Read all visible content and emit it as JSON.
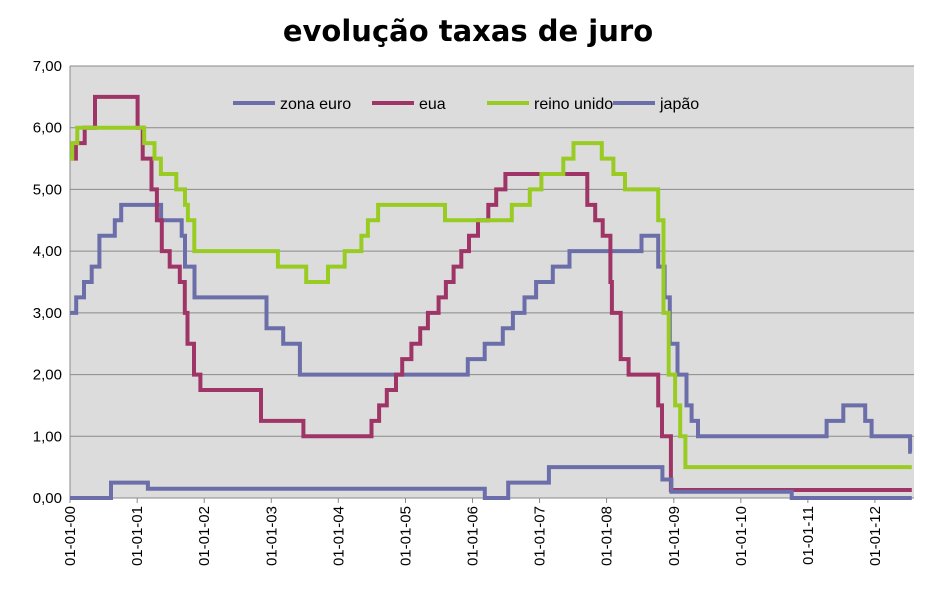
{
  "chart_data": {
    "type": "line",
    "title": "evolução taxas de juro",
    "xlabel": "",
    "ylabel": "",
    "ylim": [
      0,
      7
    ],
    "xlim": [
      "2000-01-01",
      "2012-08-01"
    ],
    "grid": "horizontal",
    "legend_position": "top-center",
    "y_ticks": [
      "0,00",
      "1,00",
      "2,00",
      "3,00",
      "4,00",
      "5,00",
      "6,00",
      "7,00"
    ],
    "x_ticks": [
      "01-01-00",
      "01-01-01",
      "01-01-02",
      "01-01-03",
      "01-01-04",
      "01-01-05",
      "01-01-06",
      "01-01-07",
      "01-01-08",
      "01-01-09",
      "01-01-10",
      "01-01-11",
      "01-01-12"
    ],
    "series": [
      {
        "name": "zona euro",
        "color": "#6b6ea8",
        "points": [
          [
            "2000-01-01",
            3.0
          ],
          [
            "2000-02-04",
            3.25
          ],
          [
            "2000-03-17",
            3.5
          ],
          [
            "2000-04-28",
            3.75
          ],
          [
            "2000-06-09",
            4.25
          ],
          [
            "2000-09-01",
            4.5
          ],
          [
            "2000-10-06",
            4.75
          ],
          [
            "2001-05-11",
            4.5
          ],
          [
            "2001-08-31",
            4.25
          ],
          [
            "2001-09-18",
            3.75
          ],
          [
            "2001-11-09",
            3.25
          ],
          [
            "2002-12-06",
            2.75
          ],
          [
            "2003-03-07",
            2.5
          ],
          [
            "2003-06-06",
            2.0
          ],
          [
            "2005-12-06",
            2.25
          ],
          [
            "2006-03-08",
            2.5
          ],
          [
            "2006-06-15",
            2.75
          ],
          [
            "2006-08-09",
            3.0
          ],
          [
            "2006-10-11",
            3.25
          ],
          [
            "2006-12-13",
            3.5
          ],
          [
            "2007-03-14",
            3.75
          ],
          [
            "2007-06-13",
            4.0
          ],
          [
            "2008-07-09",
            4.25
          ],
          [
            "2008-10-08",
            3.75
          ],
          [
            "2008-11-12",
            3.25
          ],
          [
            "2008-12-10",
            2.5
          ],
          [
            "2009-01-21",
            2.0
          ],
          [
            "2009-03-11",
            1.5
          ],
          [
            "2009-04-08",
            1.25
          ],
          [
            "2009-05-13",
            1.0
          ],
          [
            "2011-04-13",
            1.25
          ],
          [
            "2011-07-13",
            1.5
          ],
          [
            "2011-11-09",
            1.25
          ],
          [
            "2011-12-14",
            1.0
          ],
          [
            "2012-07-11",
            0.75
          ],
          [
            "2012-07-20",
            0.75
          ]
        ]
      },
      {
        "name": "eua",
        "color": "#9e3566",
        "points": [
          [
            "2000-01-01",
            5.5
          ],
          [
            "2000-02-02",
            5.75
          ],
          [
            "2000-03-21",
            6.0
          ],
          [
            "2000-05-16",
            6.5
          ],
          [
            "2001-01-03",
            6.0
          ],
          [
            "2001-01-31",
            5.5
          ],
          [
            "2001-03-20",
            5.0
          ],
          [
            "2001-04-18",
            4.5
          ],
          [
            "2001-05-15",
            4.0
          ],
          [
            "2001-06-27",
            3.75
          ],
          [
            "2001-08-21",
            3.5
          ],
          [
            "2001-09-17",
            3.0
          ],
          [
            "2001-10-02",
            2.5
          ],
          [
            "2001-11-06",
            2.0
          ],
          [
            "2001-12-11",
            1.75
          ],
          [
            "2002-11-06",
            1.25
          ],
          [
            "2003-06-25",
            1.0
          ],
          [
            "2004-06-30",
            1.25
          ],
          [
            "2004-08-10",
            1.5
          ],
          [
            "2004-09-21",
            1.75
          ],
          [
            "2004-11-10",
            2.0
          ],
          [
            "2004-12-14",
            2.25
          ],
          [
            "2005-02-02",
            2.5
          ],
          [
            "2005-03-22",
            2.75
          ],
          [
            "2005-05-03",
            3.0
          ],
          [
            "2005-06-30",
            3.25
          ],
          [
            "2005-08-09",
            3.5
          ],
          [
            "2005-09-20",
            3.75
          ],
          [
            "2005-11-01",
            4.0
          ],
          [
            "2005-12-13",
            4.25
          ],
          [
            "2006-01-31",
            4.5
          ],
          [
            "2006-03-28",
            4.75
          ],
          [
            "2006-05-10",
            5.0
          ],
          [
            "2006-06-29",
            5.25
          ],
          [
            "2007-09-18",
            4.75
          ],
          [
            "2007-10-31",
            4.5
          ],
          [
            "2007-12-11",
            4.25
          ],
          [
            "2008-01-22",
            3.5
          ],
          [
            "2008-01-30",
            3.0
          ],
          [
            "2008-03-18",
            2.25
          ],
          [
            "2008-04-30",
            2.0
          ],
          [
            "2008-10-08",
            1.5
          ],
          [
            "2008-10-29",
            1.0
          ],
          [
            "2008-12-16",
            0.13
          ],
          [
            "2012-07-20",
            0.13
          ]
        ]
      },
      {
        "name": "reino unido",
        "color": "#99cc22",
        "points": [
          [
            "2000-01-01",
            5.5
          ],
          [
            "2000-01-13",
            5.75
          ],
          [
            "2000-02-10",
            6.0
          ],
          [
            "2001-02-08",
            5.75
          ],
          [
            "2001-04-05",
            5.5
          ],
          [
            "2001-05-10",
            5.25
          ],
          [
            "2001-08-02",
            5.0
          ],
          [
            "2001-09-18",
            4.75
          ],
          [
            "2001-10-04",
            4.5
          ],
          [
            "2001-11-08",
            4.0
          ],
          [
            "2003-02-06",
            3.75
          ],
          [
            "2003-07-10",
            3.5
          ],
          [
            "2003-11-06",
            3.75
          ],
          [
            "2004-02-05",
            4.0
          ],
          [
            "2004-05-06",
            4.25
          ],
          [
            "2004-06-10",
            4.5
          ],
          [
            "2004-08-05",
            4.75
          ],
          [
            "2005-08-04",
            4.5
          ],
          [
            "2006-08-03",
            4.75
          ],
          [
            "2006-11-09",
            5.0
          ],
          [
            "2007-01-11",
            5.25
          ],
          [
            "2007-05-10",
            5.5
          ],
          [
            "2007-07-05",
            5.75
          ],
          [
            "2007-12-06",
            5.5
          ],
          [
            "2008-02-07",
            5.25
          ],
          [
            "2008-04-10",
            5.0
          ],
          [
            "2008-10-08",
            4.5
          ],
          [
            "2008-11-06",
            3.0
          ],
          [
            "2008-12-04",
            2.0
          ],
          [
            "2009-01-08",
            1.5
          ],
          [
            "2009-02-05",
            1.0
          ],
          [
            "2009-03-05",
            0.5
          ],
          [
            "2012-07-20",
            0.5
          ]
        ]
      },
      {
        "name": "japão",
        "color": "#6b6ea8",
        "points": [
          [
            "2000-01-01",
            0.0
          ],
          [
            "2000-08-11",
            0.25
          ],
          [
            "2001-02-28",
            0.15
          ],
          [
            "2006-03-09",
            0.0
          ],
          [
            "2006-07-14",
            0.25
          ],
          [
            "2007-02-21",
            0.5
          ],
          [
            "2008-10-31",
            0.3
          ],
          [
            "2008-12-19",
            0.1
          ],
          [
            "2010-10-05",
            0.0
          ],
          [
            "2012-07-20",
            0.0
          ]
        ]
      }
    ]
  }
}
